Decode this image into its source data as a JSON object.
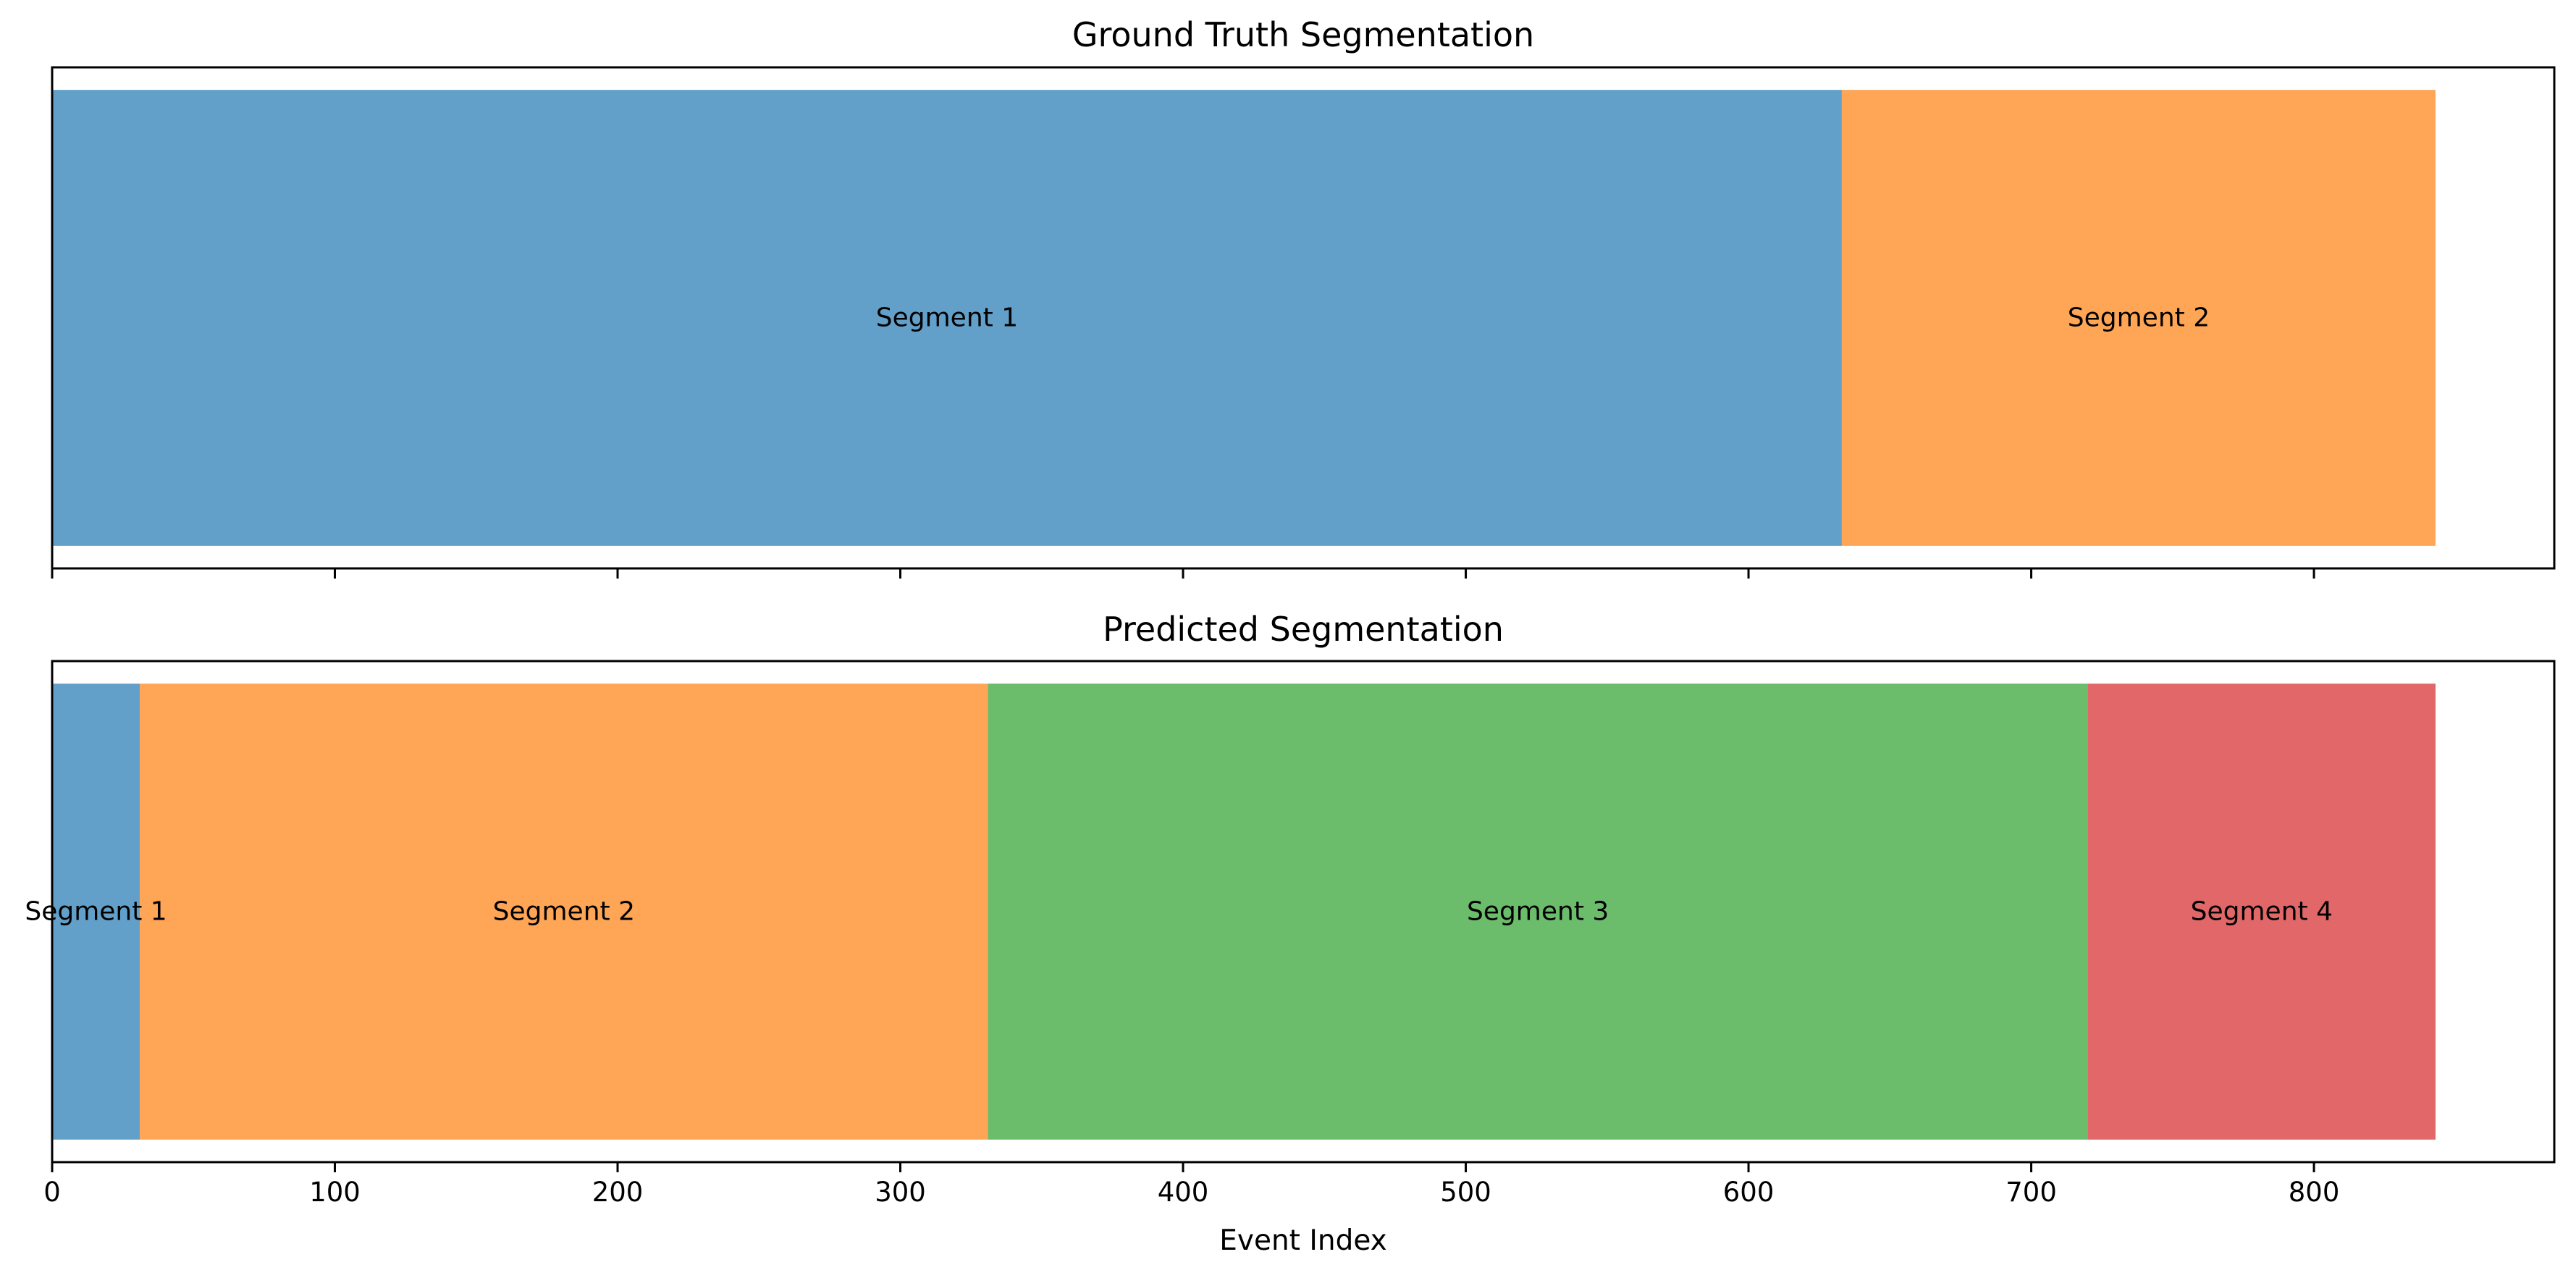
{
  "chart_data": [
    {
      "type": "bar",
      "orientation": "horizontal-segments",
      "title": "Ground Truth Segmentation",
      "xlim": [
        0,
        885
      ],
      "show_tick_labels": false,
      "segments": [
        {
          "label": "Segment 1",
          "start": 0,
          "end": 633,
          "color": "#1f77b4"
        },
        {
          "label": "Segment 2",
          "start": 633,
          "end": 843,
          "color": "#ff7f0e"
        }
      ]
    },
    {
      "type": "bar",
      "orientation": "horizontal-segments",
      "title": "Predicted Segmentation",
      "xlabel": "Event Index",
      "xlim": [
        0,
        885
      ],
      "show_tick_labels": true,
      "ticks": [
        "0",
        "100",
        "200",
        "300",
        "400",
        "500",
        "600",
        "700",
        "800"
      ],
      "segments": [
        {
          "label": "Segment 1",
          "start": 0,
          "end": 31,
          "color": "#1f77b4"
        },
        {
          "label": "Segment 2",
          "start": 31,
          "end": 331,
          "color": "#ff7f0e"
        },
        {
          "label": "Segment 3",
          "start": 331,
          "end": 720,
          "color": "#2ca02c"
        },
        {
          "label": "Segment 4",
          "start": 720,
          "end": 843,
          "color": "#d62728"
        }
      ]
    }
  ],
  "style": {
    "bar_opacity": 0.7,
    "background": "#ffffff",
    "axis_color": "#000000"
  }
}
